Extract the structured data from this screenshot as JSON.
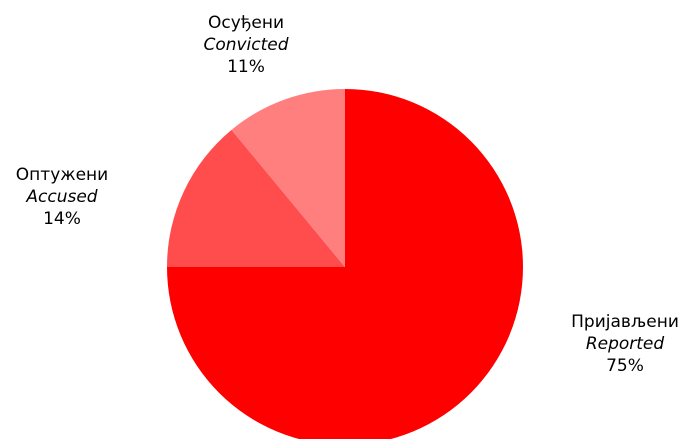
{
  "chart_data": {
    "type": "pie",
    "slices": [
      {
        "label_sr": "Пријављени",
        "label_en": "Reported",
        "percent_label": "75%",
        "value": 75,
        "color": "#ff0000"
      },
      {
        "label_sr": "Оптужени",
        "label_en": "Accused",
        "percent_label": "14%",
        "value": 14,
        "color": "#ff4d4d"
      },
      {
        "label_sr": "Осуђени",
        "label_en": "Convicted",
        "percent_label": "11%",
        "value": 11,
        "color": "#ff7f7f"
      }
    ]
  }
}
